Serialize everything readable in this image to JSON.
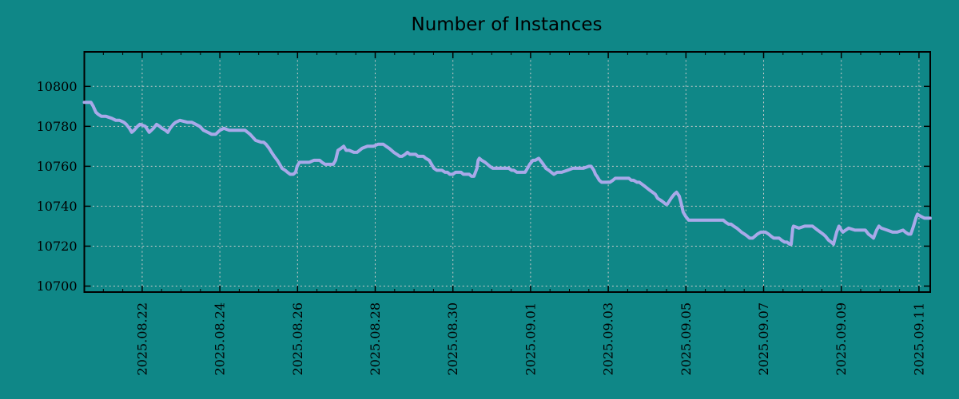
{
  "colors": {
    "background": "#0F8787",
    "line": "#A9A9E9",
    "grid": "#C9C9C9",
    "axis": "#000000",
    "text": "#000000"
  },
  "chart_data": {
    "type": "line",
    "title": "Number of Instances",
    "xlabel": "",
    "ylabel": "",
    "legend": "none",
    "grid": "dashed-major-both-axes",
    "x_axis": {
      "range_days": [
        -1.49,
        20.29
      ],
      "major_ticks": [
        {
          "d": 0,
          "label": "2025.08.22"
        },
        {
          "d": 2,
          "label": "2025.08.24"
        },
        {
          "d": 4,
          "label": "2025.08.26"
        },
        {
          "d": 6,
          "label": "2025.08.28"
        },
        {
          "d": 8,
          "label": "2025.08.30"
        },
        {
          "d": 10,
          "label": "2025.09.01"
        },
        {
          "d": 12,
          "label": "2025.09.03"
        },
        {
          "d": 14,
          "label": "2025.09.05"
        },
        {
          "d": 16,
          "label": "2025.09.07"
        },
        {
          "d": 18,
          "label": "2025.09.09"
        },
        {
          "d": 20,
          "label": "2025.09.11"
        }
      ],
      "minor_tick_step_days": 0.5,
      "label_rotation_deg": -90
    },
    "y_axis": {
      "range": [
        10697,
        10817.3
      ],
      "major_ticks": [
        10700,
        10720,
        10740,
        10760,
        10780,
        10800
      ]
    },
    "series": [
      {
        "name": "Number of Instances",
        "points": [
          [
            -1.49,
            10792
          ],
          [
            -1.32,
            10792
          ],
          [
            -1.26,
            10790
          ],
          [
            -1.19,
            10787
          ],
          [
            -1.13,
            10786
          ],
          [
            -1.05,
            10785
          ],
          [
            -0.93,
            10785
          ],
          [
            -0.78,
            10784
          ],
          [
            -0.68,
            10783
          ],
          [
            -0.58,
            10783
          ],
          [
            -0.47,
            10782
          ],
          [
            -0.41,
            10781
          ],
          [
            -0.33,
            10779
          ],
          [
            -0.27,
            10777
          ],
          [
            -0.21,
            10778
          ],
          [
            -0.12,
            10780
          ],
          [
            -0.06,
            10781
          ],
          [
            0.08,
            10780
          ],
          [
            0.18,
            10777
          ],
          [
            0.29,
            10779
          ],
          [
            0.37,
            10781
          ],
          [
            0.45,
            10780
          ],
          [
            0.51,
            10779
          ],
          [
            0.6,
            10778
          ],
          [
            0.66,
            10777
          ],
          [
            0.72,
            10779
          ],
          [
            0.8,
            10781
          ],
          [
            0.86,
            10782
          ],
          [
            0.97,
            10783
          ],
          [
            1.17,
            10782
          ],
          [
            1.28,
            10782
          ],
          [
            1.38,
            10781
          ],
          [
            1.48,
            10780
          ],
          [
            1.58,
            10778
          ],
          [
            1.69,
            10777
          ],
          [
            1.79,
            10776
          ],
          [
            1.89,
            10776
          ],
          [
            2.0,
            10778
          ],
          [
            2.1,
            10779
          ],
          [
            2.24,
            10778
          ],
          [
            2.41,
            10778
          ],
          [
            2.57,
            10778
          ],
          [
            2.65,
            10778
          ],
          [
            2.78,
            10776
          ],
          [
            2.92,
            10773
          ],
          [
            3.07,
            10772
          ],
          [
            3.13,
            10772
          ],
          [
            3.19,
            10771
          ],
          [
            3.27,
            10769
          ],
          [
            3.33,
            10767
          ],
          [
            3.4,
            10765
          ],
          [
            3.48,
            10763
          ],
          [
            3.54,
            10761
          ],
          [
            3.6,
            10759
          ],
          [
            3.68,
            10758
          ],
          [
            3.74,
            10757
          ],
          [
            3.81,
            10756
          ],
          [
            3.89,
            10756
          ],
          [
            3.95,
            10757
          ],
          [
            3.99,
            10760
          ],
          [
            4.05,
            10762
          ],
          [
            4.16,
            10762
          ],
          [
            4.3,
            10762
          ],
          [
            4.42,
            10763
          ],
          [
            4.57,
            10763
          ],
          [
            4.63,
            10762
          ],
          [
            4.71,
            10761
          ],
          [
            4.84,
            10761
          ],
          [
            4.92,
            10761
          ],
          [
            4.98,
            10763
          ],
          [
            5.04,
            10768
          ],
          [
            5.12,
            10769
          ],
          [
            5.19,
            10770
          ],
          [
            5.25,
            10768
          ],
          [
            5.33,
            10768
          ],
          [
            5.45,
            10767
          ],
          [
            5.53,
            10767
          ],
          [
            5.66,
            10769
          ],
          [
            5.8,
            10770
          ],
          [
            5.95,
            10770
          ],
          [
            6.07,
            10771
          ],
          [
            6.21,
            10771
          ],
          [
            6.28,
            10770
          ],
          [
            6.36,
            10769
          ],
          [
            6.42,
            10768
          ],
          [
            6.48,
            10767
          ],
          [
            6.56,
            10766
          ],
          [
            6.63,
            10765
          ],
          [
            6.69,
            10765
          ],
          [
            6.77,
            10766
          ],
          [
            6.83,
            10767
          ],
          [
            6.89,
            10766
          ],
          [
            6.98,
            10766
          ],
          [
            7.04,
            10766
          ],
          [
            7.1,
            10765
          ],
          [
            7.18,
            10765
          ],
          [
            7.24,
            10765
          ],
          [
            7.3,
            10764
          ],
          [
            7.39,
            10763
          ],
          [
            7.45,
            10761
          ],
          [
            7.51,
            10759
          ],
          [
            7.59,
            10758
          ],
          [
            7.65,
            10758
          ],
          [
            7.72,
            10758
          ],
          [
            7.8,
            10757
          ],
          [
            7.86,
            10757
          ],
          [
            7.92,
            10756
          ],
          [
            8.0,
            10756
          ],
          [
            8.07,
            10757
          ],
          [
            8.13,
            10757
          ],
          [
            8.21,
            10757
          ],
          [
            8.27,
            10756
          ],
          [
            8.33,
            10756
          ],
          [
            8.42,
            10756
          ],
          [
            8.48,
            10755
          ],
          [
            8.54,
            10755
          ],
          [
            8.62,
            10759
          ],
          [
            8.65,
            10763
          ],
          [
            8.68,
            10764
          ],
          [
            8.74,
            10763
          ],
          [
            8.83,
            10762
          ],
          [
            8.89,
            10761
          ],
          [
            8.95,
            10760
          ],
          [
            9.03,
            10759
          ],
          [
            9.16,
            10759
          ],
          [
            9.3,
            10759
          ],
          [
            9.36,
            10759
          ],
          [
            9.44,
            10759
          ],
          [
            9.51,
            10758
          ],
          [
            9.57,
            10758
          ],
          [
            9.65,
            10757
          ],
          [
            9.71,
            10757
          ],
          [
            9.77,
            10757
          ],
          [
            9.86,
            10757
          ],
          [
            9.92,
            10759
          ],
          [
            9.98,
            10761
          ],
          [
            10.06,
            10763
          ],
          [
            10.12,
            10763
          ],
          [
            10.21,
            10764
          ],
          [
            10.33,
            10761
          ],
          [
            10.39,
            10759
          ],
          [
            10.47,
            10758
          ],
          [
            10.53,
            10757
          ],
          [
            10.6,
            10756
          ],
          [
            10.68,
            10757
          ],
          [
            10.74,
            10757
          ],
          [
            10.8,
            10757
          ],
          [
            10.95,
            10758
          ],
          [
            11.09,
            10759
          ],
          [
            11.21,
            10759
          ],
          [
            11.36,
            10759
          ],
          [
            11.5,
            10760
          ],
          [
            11.56,
            10760
          ],
          [
            11.63,
            10758
          ],
          [
            11.67,
            10756
          ],
          [
            11.71,
            10755
          ],
          [
            11.77,
            10753
          ],
          [
            11.83,
            10752
          ],
          [
            11.91,
            10752
          ],
          [
            11.98,
            10752
          ],
          [
            12.04,
            10752
          ],
          [
            12.12,
            10753
          ],
          [
            12.18,
            10754
          ],
          [
            12.24,
            10754
          ],
          [
            12.33,
            10754
          ],
          [
            12.39,
            10754
          ],
          [
            12.45,
            10754
          ],
          [
            12.53,
            10754
          ],
          [
            12.59,
            10753
          ],
          [
            12.65,
            10753
          ],
          [
            12.74,
            10752
          ],
          [
            12.8,
            10752
          ],
          [
            12.94,
            10750
          ],
          [
            13.07,
            10748
          ],
          [
            13.21,
            10746
          ],
          [
            13.27,
            10744
          ],
          [
            13.35,
            10743
          ],
          [
            13.42,
            10742
          ],
          [
            13.48,
            10741
          ],
          [
            13.52,
            10741
          ],
          [
            13.62,
            10744
          ],
          [
            13.7,
            10746
          ],
          [
            13.76,
            10747
          ],
          [
            13.83,
            10745
          ],
          [
            13.87,
            10742
          ],
          [
            13.93,
            10737
          ],
          [
            13.99,
            10735
          ],
          [
            14.07,
            10733
          ],
          [
            14.18,
            10733
          ],
          [
            14.3,
            10733
          ],
          [
            14.44,
            10733
          ],
          [
            14.59,
            10733
          ],
          [
            14.71,
            10733
          ],
          [
            14.86,
            10733
          ],
          [
            14.96,
            10733
          ],
          [
            15.02,
            10732
          ],
          [
            15.1,
            10731
          ],
          [
            15.16,
            10731
          ],
          [
            15.23,
            10730
          ],
          [
            15.31,
            10729
          ],
          [
            15.37,
            10728
          ],
          [
            15.43,
            10727
          ],
          [
            15.51,
            10726
          ],
          [
            15.58,
            10725
          ],
          [
            15.64,
            10724
          ],
          [
            15.72,
            10724
          ],
          [
            15.78,
            10725
          ],
          [
            15.84,
            10726
          ],
          [
            15.93,
            10727
          ],
          [
            15.99,
            10727
          ],
          [
            16.05,
            10727
          ],
          [
            16.13,
            10726
          ],
          [
            16.19,
            10725
          ],
          [
            16.26,
            10724
          ],
          [
            16.34,
            10724
          ],
          [
            16.4,
            10724
          ],
          [
            16.46,
            10723
          ],
          [
            16.54,
            10722
          ],
          [
            16.6,
            10722
          ],
          [
            16.67,
            10721
          ],
          [
            16.71,
            10721
          ],
          [
            16.75,
            10729
          ],
          [
            16.77,
            10730
          ],
          [
            16.91,
            10729
          ],
          [
            17.06,
            10730
          ],
          [
            17.18,
            10730
          ],
          [
            17.26,
            10730
          ],
          [
            17.39,
            10728
          ],
          [
            17.53,
            10726
          ],
          [
            17.59,
            10725
          ],
          [
            17.67,
            10723
          ],
          [
            17.74,
            10722
          ],
          [
            17.8,
            10721
          ],
          [
            17.88,
            10727
          ],
          [
            17.94,
            10730
          ],
          [
            18.0,
            10728
          ],
          [
            18.04,
            10727
          ],
          [
            18.11,
            10728
          ],
          [
            18.19,
            10729
          ],
          [
            18.35,
            10728
          ],
          [
            18.56,
            10728
          ],
          [
            18.62,
            10728
          ],
          [
            18.7,
            10726
          ],
          [
            18.77,
            10725
          ],
          [
            18.83,
            10724
          ],
          [
            18.91,
            10728
          ],
          [
            18.97,
            10730
          ],
          [
            19.03,
            10729
          ],
          [
            19.18,
            10728
          ],
          [
            19.32,
            10727
          ],
          [
            19.44,
            10727
          ],
          [
            19.59,
            10728
          ],
          [
            19.65,
            10727
          ],
          [
            19.73,
            10726
          ],
          [
            19.79,
            10726
          ],
          [
            19.86,
            10730
          ],
          [
            19.92,
            10734
          ],
          [
            19.96,
            10736
          ],
          [
            20.04,
            10735
          ],
          [
            20.14,
            10734
          ],
          [
            20.29,
            10734
          ]
        ]
      }
    ]
  }
}
